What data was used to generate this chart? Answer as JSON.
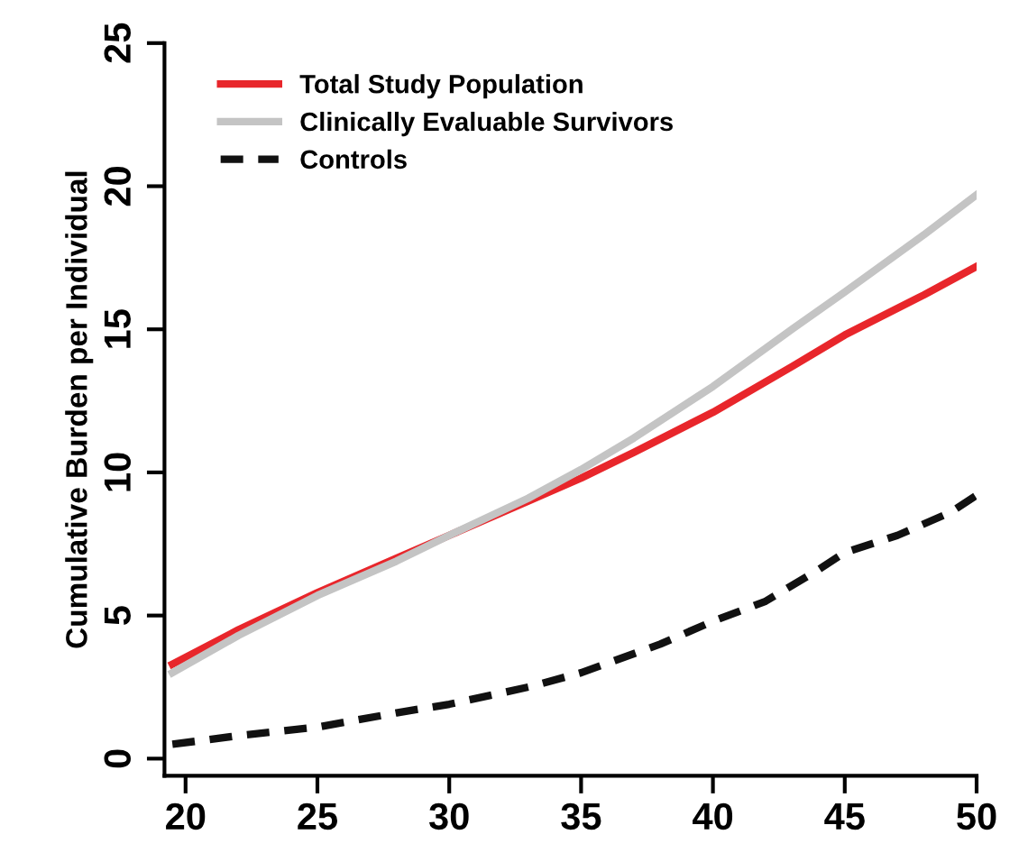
{
  "chart_data": {
    "type": "line",
    "ylabel": "Cumulative Burden per Individual",
    "xlim": [
      19.2,
      50
    ],
    "ylim": [
      -0.6,
      25
    ],
    "xticks": [
      20,
      25,
      30,
      35,
      40,
      45,
      50
    ],
    "yticks": [
      0,
      5,
      10,
      15,
      20,
      25
    ],
    "grid": false,
    "legend": "top left",
    "series": [
      {
        "name": "Total Study Population",
        "color": "#e8262b",
        "line_style": "solid",
        "x": [
          19.5,
          22,
          25,
          28,
          30,
          33,
          35,
          37,
          40,
          43,
          45,
          48,
          50
        ],
        "values": [
          3.3,
          4.5,
          5.8,
          7.0,
          7.8,
          9.0,
          9.8,
          10.7,
          12.1,
          13.7,
          14.8,
          16.2,
          17.2
        ]
      },
      {
        "name": "Clinically Evaluable Survivors",
        "color": "#c4c4c4",
        "line_style": "solid",
        "x": [
          19.5,
          22,
          25,
          28,
          30,
          33,
          35,
          37,
          40,
          43,
          45,
          48,
          50
        ],
        "values": [
          3.0,
          4.3,
          5.7,
          6.9,
          7.8,
          9.1,
          10.1,
          11.2,
          13.0,
          15.0,
          16.3,
          18.3,
          19.7
        ]
      },
      {
        "name": "Controls",
        "color": "#111111",
        "line_style": "dashed",
        "x": [
          19.5,
          22,
          25,
          28,
          30,
          33,
          35,
          38,
          40,
          42,
          44,
          45,
          47,
          49,
          50
        ],
        "values": [
          0.5,
          0.8,
          1.1,
          1.6,
          1.9,
          2.5,
          3.0,
          4.0,
          4.8,
          5.5,
          6.6,
          7.2,
          7.8,
          8.6,
          9.2
        ]
      }
    ]
  }
}
